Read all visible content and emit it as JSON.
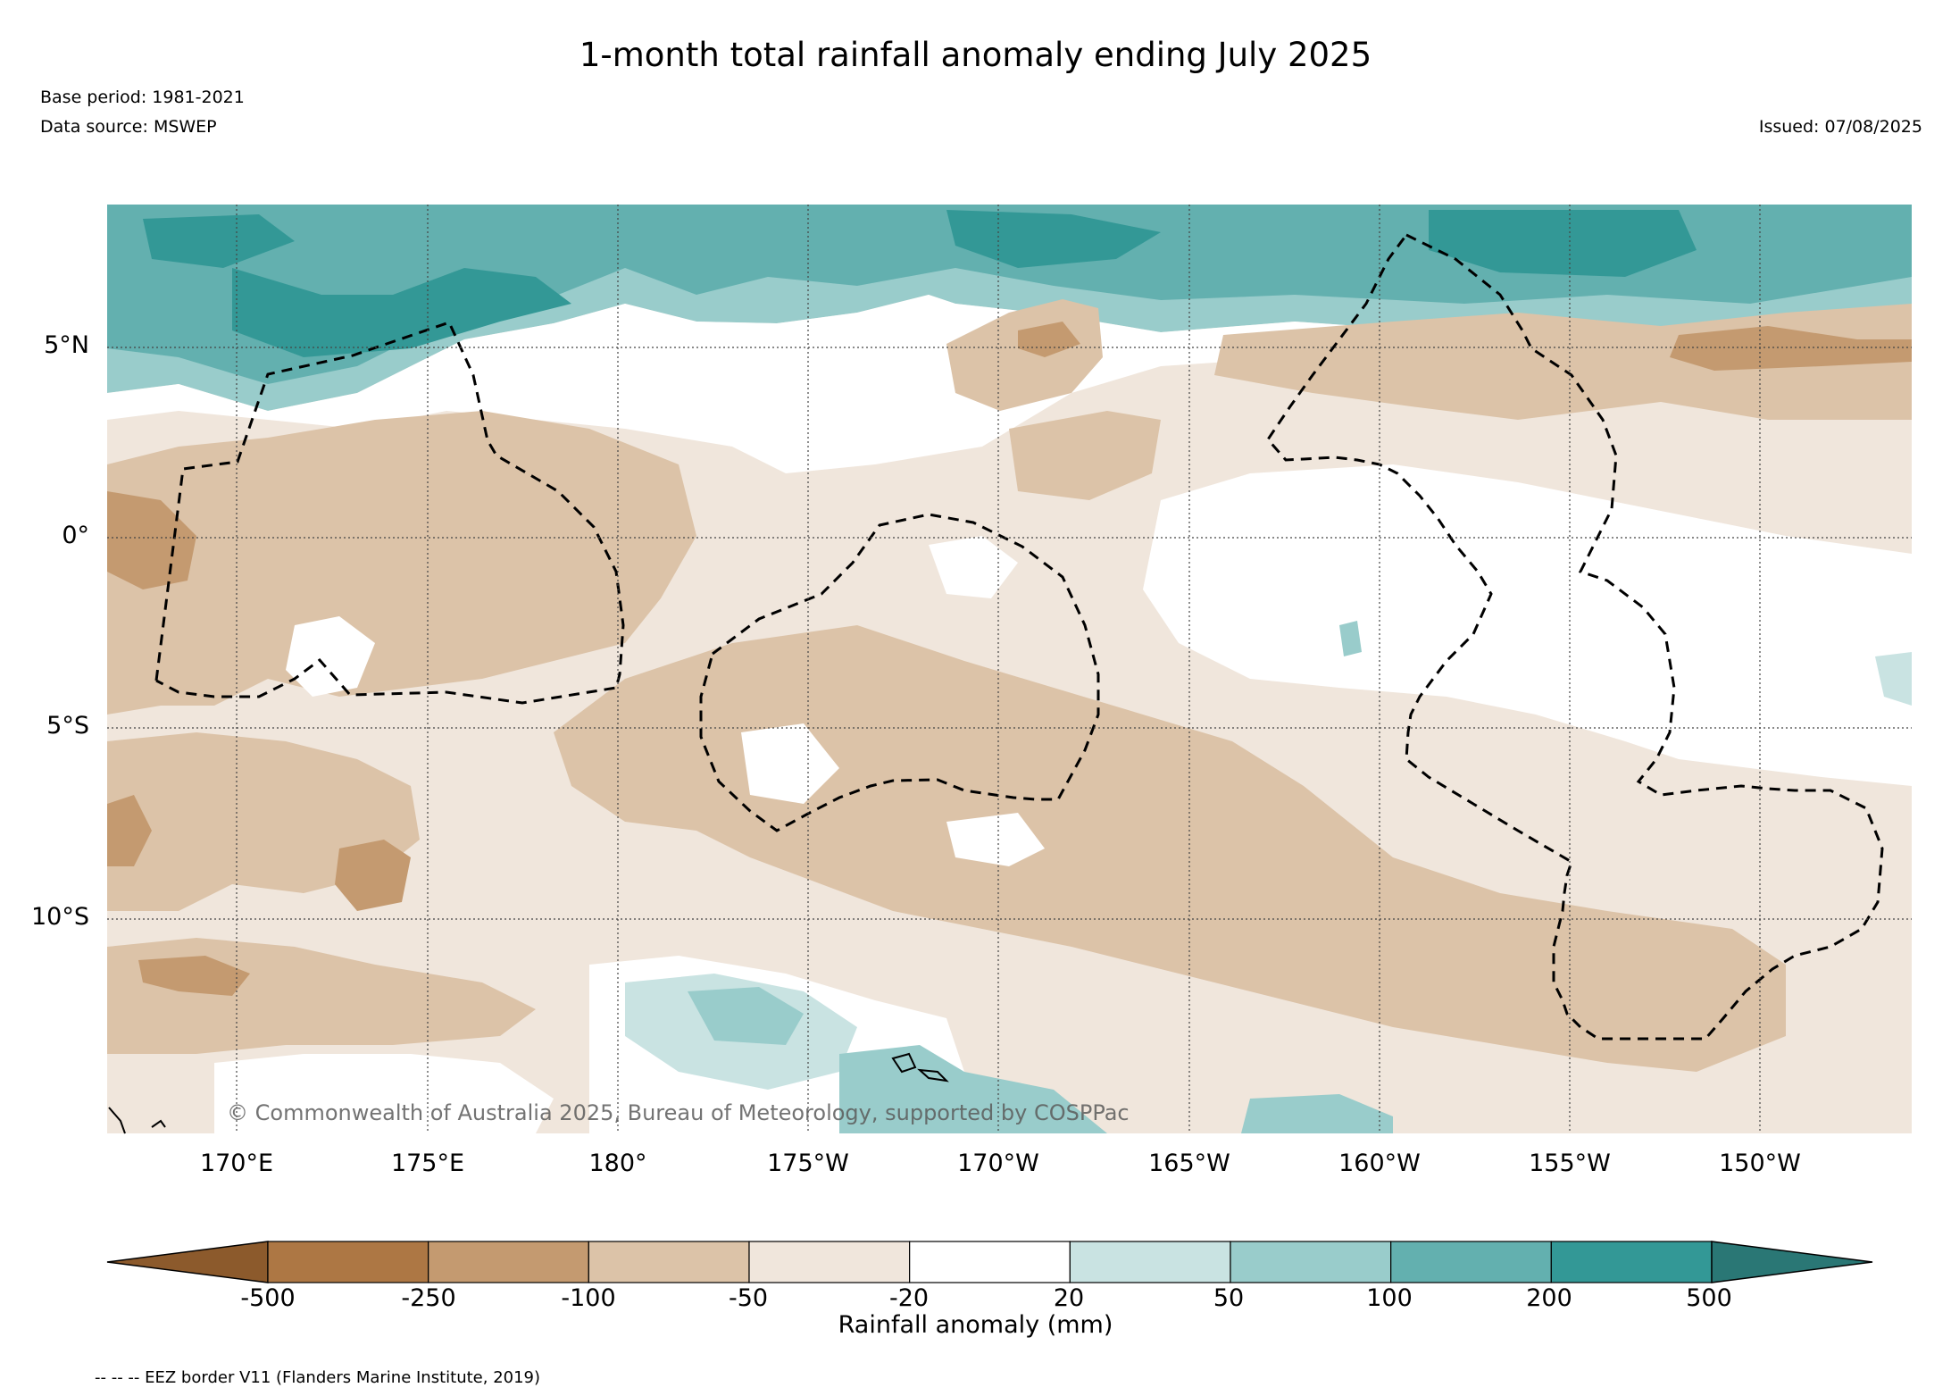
{
  "title": "1-month total rainfall anomaly ending July 2025",
  "base_period": "Base period: 1981-2021",
  "data_source": "Data source: MSWEP",
  "issued": "Issued: 07/08/2025",
  "copyright": "© Commonwealth of Australia 2025, Bureau of Meteorology, supported by COSPPac",
  "footnote": "-- -- -- EEZ border V11 (Flanders Marine Institute, 2019)",
  "lat_labels": [
    "5°N",
    "0°",
    "5°S",
    "10°S"
  ],
  "lon_labels": [
    "170°E",
    "175°E",
    "180°",
    "175°W",
    "170°W",
    "165°W",
    "160°W",
    "155°W",
    "150°W"
  ],
  "colorbar": {
    "title": "Rainfall anomaly (mm)",
    "tick_labels": [
      "-500",
      "-250",
      "-100",
      "-50",
      "-20",
      "20",
      "50",
      "100",
      "200",
      "500"
    ],
    "colors": [
      "#8c5a2c",
      "#ad7744",
      "#c49a70",
      "#dcc3a8",
      "#f0e6dc",
      "#ffffff",
      "#c9e3e2",
      "#99cccb",
      "#63b0af",
      "#339896",
      "#2a7775"
    ]
  }
}
